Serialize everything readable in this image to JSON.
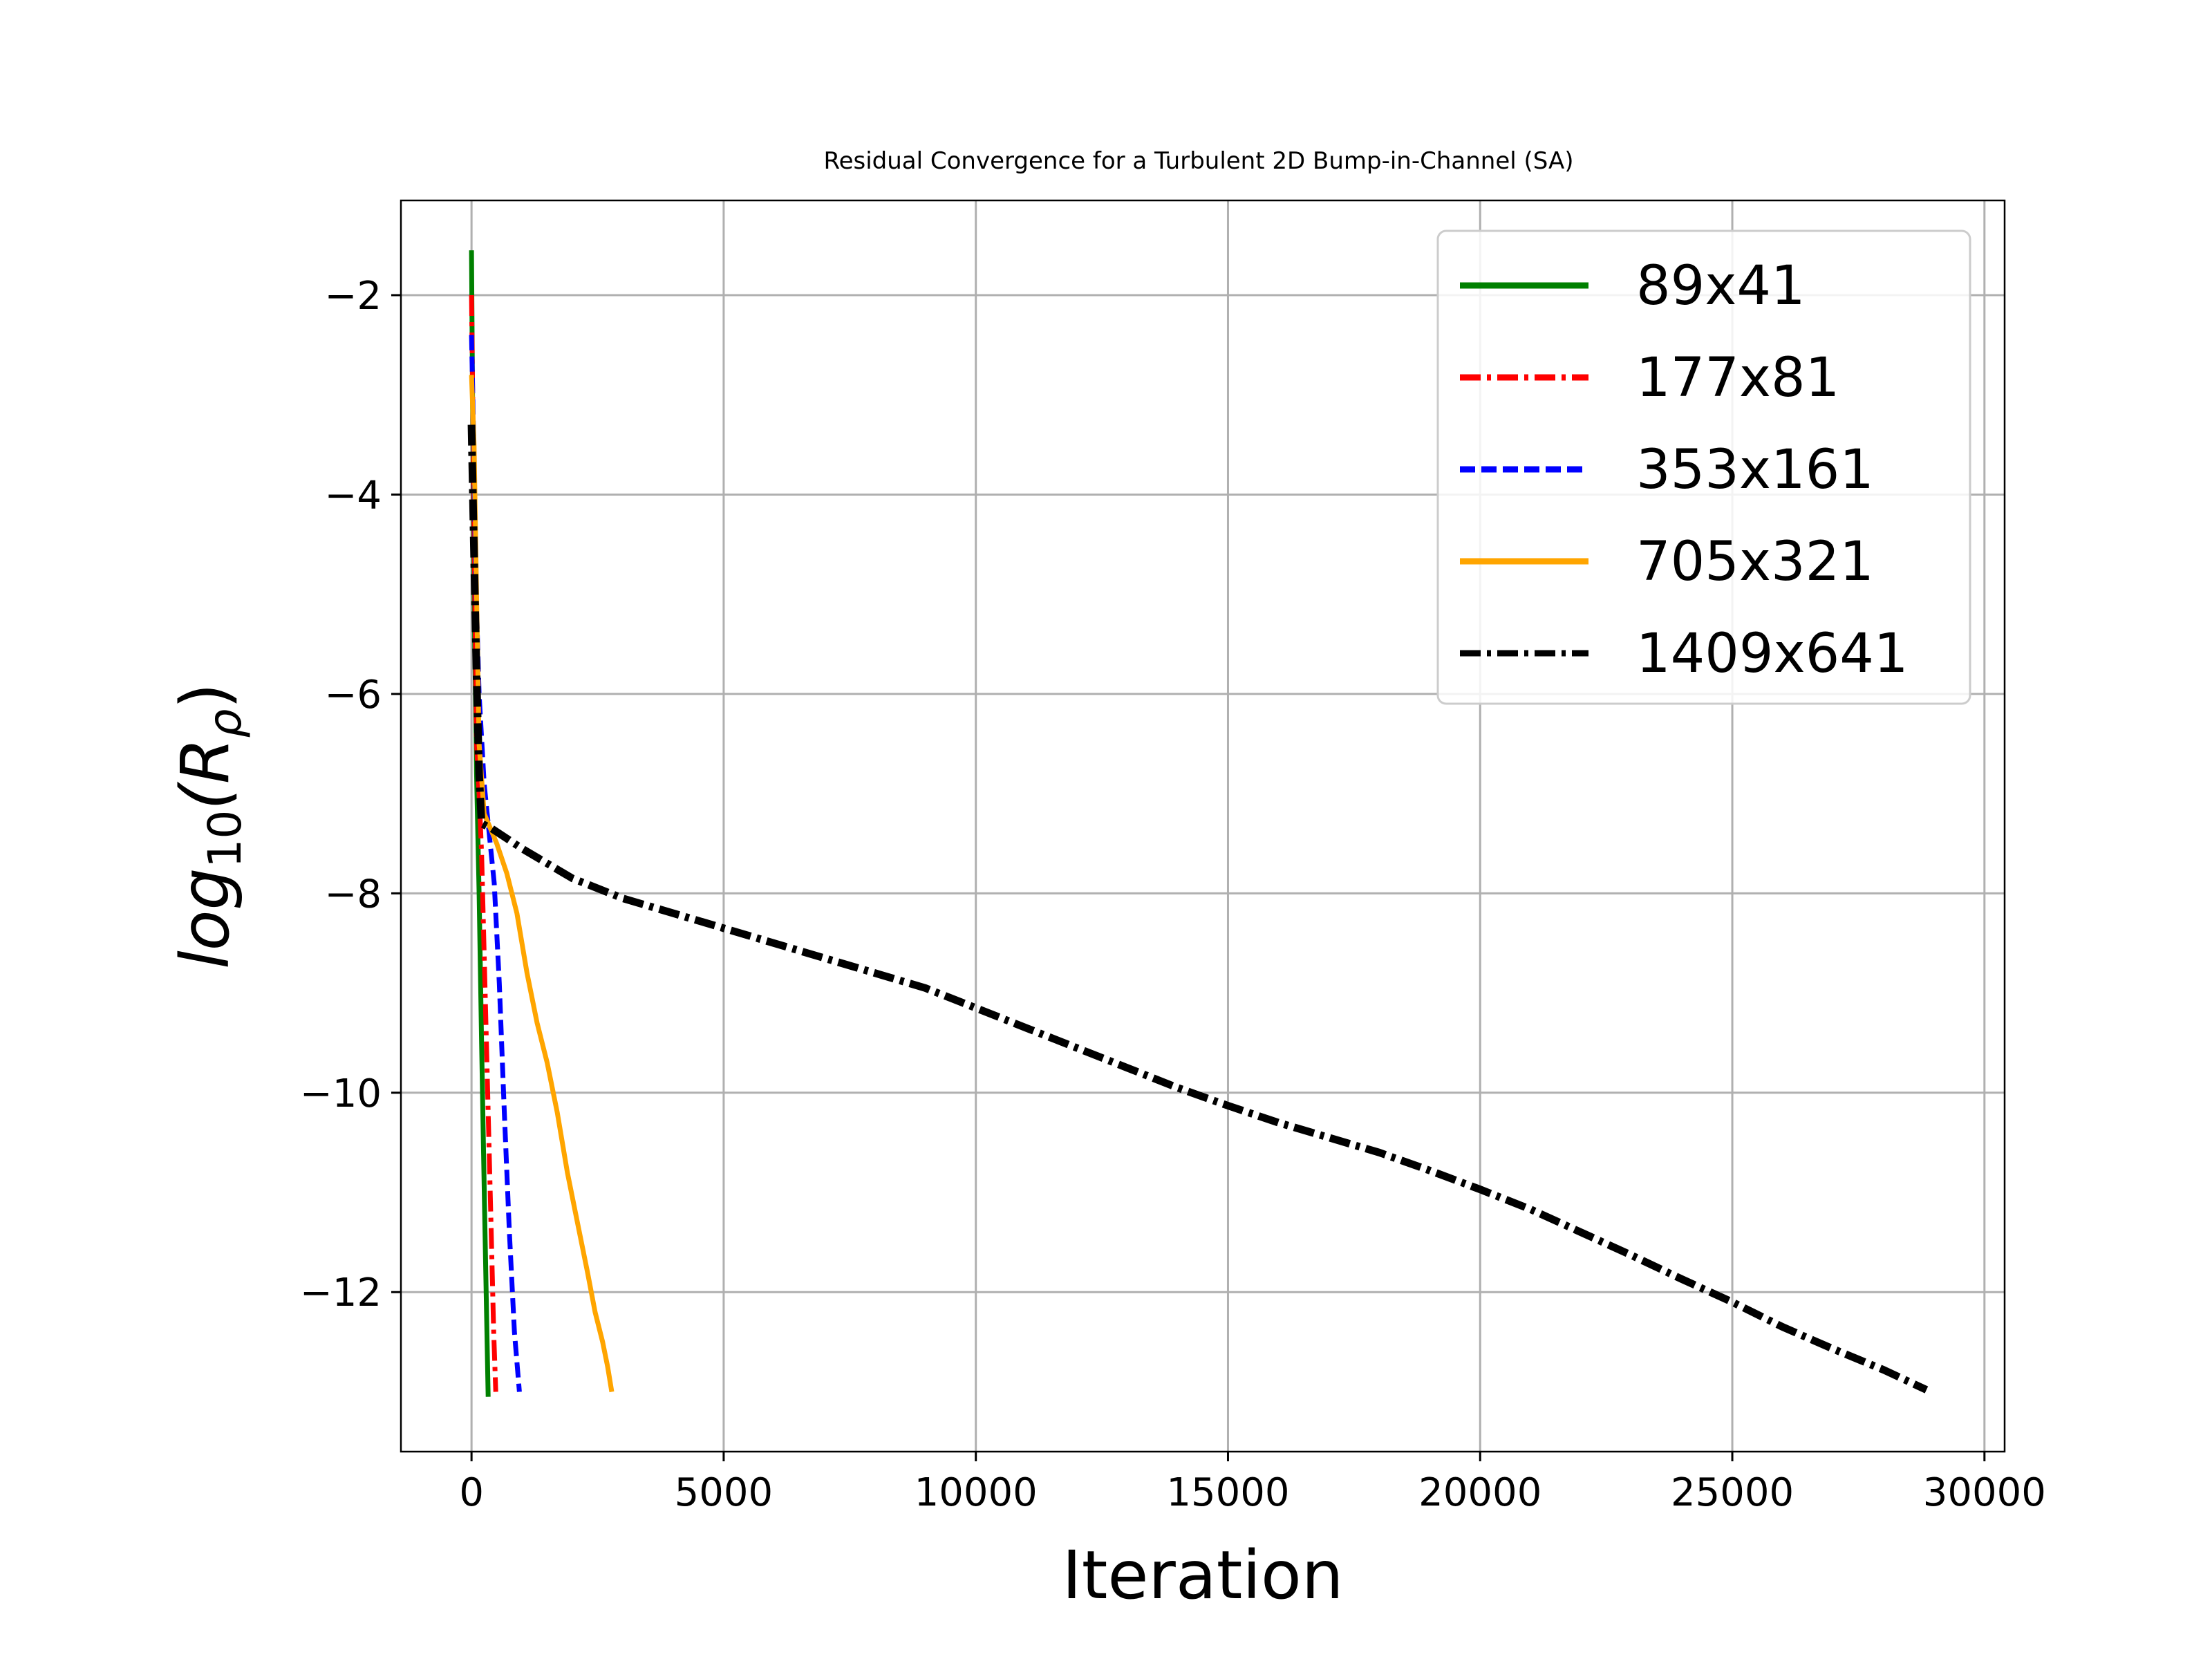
{
  "chart_data": {
    "type": "line",
    "title": "Residual Convergence for a Turbulent 2D Bump-in-Channel (SA)",
    "xlabel": "Iteration",
    "ylabel": "log10(R_ρ)",
    "ylabel_parts": {
      "base": "log",
      "sub1": "10",
      "mid": "(R",
      "sub2": "ρ",
      "end": ")"
    },
    "xlim": [
      -1400,
      30400
    ],
    "ylim": [
      -13.6,
      -1.05
    ],
    "xticks": [
      0,
      5000,
      10000,
      15000,
      20000,
      25000,
      30000
    ],
    "xtick_labels": [
      "0",
      "5000",
      "10000",
      "15000",
      "20000",
      "25000",
      "30000"
    ],
    "yticks": [
      -2,
      -4,
      -6,
      -8,
      -10,
      -12
    ],
    "ytick_labels": [
      "−2",
      "−4",
      "−6",
      "−8",
      "−10",
      "−12"
    ],
    "grid": true,
    "legend_position": "top-right",
    "series": [
      {
        "name": "89x41",
        "color": "#008000",
        "style": "solid",
        "points": [
          [
            0,
            -1.55
          ],
          [
            20,
            -3.0
          ],
          [
            50,
            -5.0
          ],
          [
            100,
            -6.8
          ],
          [
            150,
            -8.0
          ],
          [
            200,
            -9.5
          ],
          [
            260,
            -11.2
          ],
          [
            330,
            -13.05
          ]
        ]
      },
      {
        "name": "177x81",
        "color": "#ff0000",
        "style": "dashdot",
        "points": [
          [
            0,
            -2.0
          ],
          [
            30,
            -3.3
          ],
          [
            60,
            -4.8
          ],
          [
            100,
            -6.5
          ],
          [
            150,
            -7.0
          ],
          [
            200,
            -7.6
          ],
          [
            260,
            -8.8
          ],
          [
            320,
            -10.0
          ],
          [
            380,
            -11.2
          ],
          [
            440,
            -12.4
          ],
          [
            480,
            -13.0
          ]
        ]
      },
      {
        "name": "353x161",
        "color": "#0000ff",
        "style": "dashed",
        "points": [
          [
            0,
            -2.4
          ],
          [
            40,
            -3.4
          ],
          [
            80,
            -4.8
          ],
          [
            150,
            -6.0
          ],
          [
            250,
            -6.9
          ],
          [
            350,
            -7.4
          ],
          [
            450,
            -7.9
          ],
          [
            550,
            -8.9
          ],
          [
            650,
            -10.2
          ],
          [
            750,
            -11.4
          ],
          [
            850,
            -12.4
          ],
          [
            950,
            -13.0
          ]
        ]
      },
      {
        "name": "705x321",
        "color": "#ffa500",
        "style": "solid",
        "points": [
          [
            0,
            -2.8
          ],
          [
            50,
            -3.5
          ],
          [
            100,
            -5.0
          ],
          [
            150,
            -6.5
          ],
          [
            250,
            -7.2
          ],
          [
            500,
            -7.5
          ],
          [
            700,
            -7.8
          ],
          [
            900,
            -8.2
          ],
          [
            1100,
            -8.8
          ],
          [
            1300,
            -9.3
          ],
          [
            1500,
            -9.7
          ],
          [
            1700,
            -10.2
          ],
          [
            1900,
            -10.8
          ],
          [
            2100,
            -11.3
          ],
          [
            2300,
            -11.8
          ],
          [
            2450,
            -12.2
          ],
          [
            2600,
            -12.5
          ],
          [
            2700,
            -12.75
          ],
          [
            2780,
            -13.0
          ]
        ]
      },
      {
        "name": "1409x641",
        "color": "#000000",
        "style": "dashdot",
        "points": [
          [
            0,
            -3.3
          ],
          [
            50,
            -4.6
          ],
          [
            100,
            -5.8
          ],
          [
            150,
            -6.8
          ],
          [
            200,
            -7.3
          ],
          [
            400,
            -7.35
          ],
          [
            1000,
            -7.55
          ],
          [
            2000,
            -7.85
          ],
          [
            3000,
            -8.05
          ],
          [
            4000,
            -8.2
          ],
          [
            5000,
            -8.35
          ],
          [
            6000,
            -8.5
          ],
          [
            7000,
            -8.65
          ],
          [
            8000,
            -8.8
          ],
          [
            9000,
            -8.95
          ],
          [
            10000,
            -9.15
          ],
          [
            11000,
            -9.35
          ],
          [
            12000,
            -9.55
          ],
          [
            13000,
            -9.75
          ],
          [
            14000,
            -9.95
          ],
          [
            15000,
            -10.13
          ],
          [
            16000,
            -10.3
          ],
          [
            17000,
            -10.45
          ],
          [
            18000,
            -10.6
          ],
          [
            19000,
            -10.78
          ],
          [
            20000,
            -10.97
          ],
          [
            21000,
            -11.17
          ],
          [
            22000,
            -11.4
          ],
          [
            23000,
            -11.63
          ],
          [
            24000,
            -11.87
          ],
          [
            25000,
            -12.1
          ],
          [
            26000,
            -12.35
          ],
          [
            27000,
            -12.57
          ],
          [
            28000,
            -12.78
          ],
          [
            28850,
            -12.98
          ]
        ]
      }
    ]
  }
}
